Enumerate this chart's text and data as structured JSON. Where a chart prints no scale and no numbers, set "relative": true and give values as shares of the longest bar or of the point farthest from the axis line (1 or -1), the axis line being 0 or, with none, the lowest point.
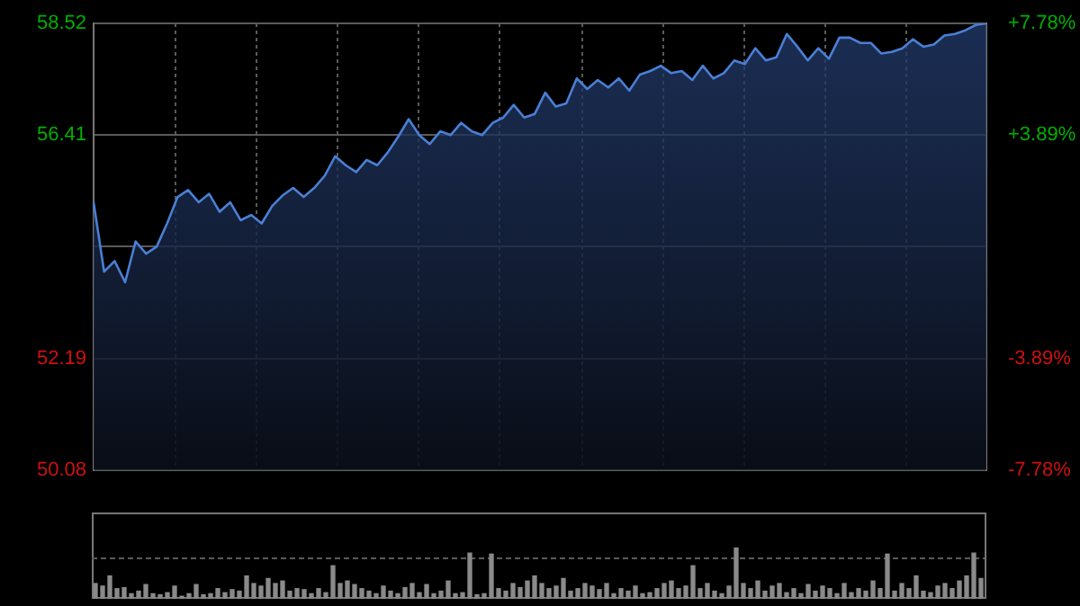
{
  "chart_data": [
    {
      "type": "area",
      "categories": [
        null,
        null,
        null,
        null,
        null,
        null,
        null,
        null,
        null,
        null,
        null,
        null,
        null,
        null,
        null,
        null,
        null,
        null,
        null,
        null,
        null,
        null,
        null,
        null,
        null,
        null,
        null,
        null,
        null,
        null,
        null,
        null,
        null,
        null,
        null,
        null,
        null,
        null,
        null,
        null,
        null,
        null,
        null,
        null,
        null,
        null,
        null,
        null,
        null,
        null,
        null,
        null,
        null,
        null,
        null,
        null,
        null,
        null,
        null,
        null,
        null,
        null,
        null,
        null,
        null,
        null,
        null,
        null,
        null,
        null,
        null,
        null,
        null,
        null,
        null,
        null,
        null,
        null,
        null,
        null,
        null,
        null,
        null,
        null,
        null,
        null
      ],
      "series": [
        {
          "color": "#4a7fd4",
          "values": [
            55.14,
            53.83,
            54.03,
            53.63,
            54.4,
            54.17,
            54.3,
            54.74,
            55.24,
            55.37,
            55.14,
            55.3,
            54.96,
            55.14,
            54.8,
            54.9,
            54.74,
            55.07,
            55.27,
            55.41,
            55.24,
            55.41,
            55.64,
            56.01,
            55.84,
            55.71,
            55.94,
            55.84,
            56.08,
            56.38,
            56.71,
            56.41,
            56.24,
            56.48,
            56.41,
            56.64,
            56.48,
            56.41,
            56.64,
            56.74,
            56.98,
            56.74,
            56.81,
            57.21,
            56.95,
            57.01,
            57.48,
            57.28,
            57.45,
            57.31,
            57.48,
            57.25,
            57.55,
            57.62,
            57.72,
            57.58,
            57.62,
            57.45,
            57.72,
            57.48,
            57.58,
            57.82,
            57.75,
            58.05,
            57.82,
            57.88,
            58.32,
            58.08,
            57.82,
            58.05,
            57.85,
            58.25,
            58.25,
            58.15,
            58.15,
            57.95,
            57.98,
            58.05,
            58.22,
            58.08,
            58.12,
            58.29,
            58.32,
            58.39,
            58.49,
            58.52
          ]
        }
      ],
      "ylim": [
        50.08,
        58.52
      ],
      "yticks": [
        "58.52",
        {
          "value": 56.41,
          "label": "56.41"
        },
        {
          "value": 54.3,
          "label": null
        },
        {
          "value": 52.19,
          "label": "52.19"
        },
        {
          "value": 50.08,
          "label": "50.08"
        }
      ],
      "y2lim": [
        -7.78,
        7.78
      ],
      "y2ticks": [
        {
          "value": 7.78,
          "label": "+7.78%"
        },
        {
          "value": 3.89,
          "label": "+3.89%"
        },
        {
          "value": 0,
          "label": null
        },
        {
          "value": -3.89,
          "label": "-3.89%"
        },
        {
          "value": -7.78,
          "label": "-7.78%"
        }
      ],
      "grid": true,
      "legend": false,
      "marker": "none",
      "line_style": "solid",
      "tick_labels": "y"
    },
    {
      "type": "bar",
      "relative": true,
      "categories": [
        null,
        null,
        null,
        null,
        null,
        null,
        null,
        null,
        null,
        null,
        null,
        null,
        null,
        null,
        null,
        null,
        null,
        null,
        null,
        null,
        null,
        null,
        null,
        null,
        null,
        null,
        null,
        null,
        null,
        null,
        null,
        null,
        null,
        null,
        null,
        null,
        null,
        null,
        null,
        null,
        null,
        null,
        null,
        null,
        null,
        null,
        null,
        null,
        null,
        null,
        null,
        null,
        null,
        null,
        null,
        null,
        null,
        null,
        null,
        null,
        null,
        null,
        null,
        null,
        null,
        null,
        null,
        null,
        null,
        null,
        null,
        null,
        null,
        null,
        null,
        null,
        null,
        null,
        null,
        null,
        null,
        null,
        null,
        null,
        null,
        null,
        null,
        null,
        null,
        null,
        null,
        null,
        null,
        null,
        null,
        null,
        null,
        null,
        null,
        null,
        null,
        null,
        null,
        null,
        null,
        null,
        null,
        null,
        null,
        null,
        null,
        null,
        null,
        null,
        null,
        null,
        null,
        null,
        null,
        null,
        null,
        null,
        null,
        null
      ],
      "series": [
        {
          "color": "#8a8a8a",
          "values": [
            0.3,
            0.25,
            0.45,
            0.2,
            0.22,
            0.1,
            0.15,
            0.28,
            0.1,
            0.08,
            0.12,
            0.25,
            0.05,
            0.1,
            0.28,
            0.08,
            0.1,
            0.2,
            0.12,
            0.18,
            0.15,
            0.45,
            0.3,
            0.25,
            0.4,
            0.3,
            0.35,
            0.15,
            0.2,
            0.18,
            0.1,
            0.2,
            0.12,
            0.65,
            0.3,
            0.35,
            0.28,
            0.2,
            0.15,
            0.1,
            0.25,
            0.15,
            0.1,
            0.22,
            0.3,
            0.12,
            0.28,
            0.1,
            0.15,
            0.35,
            0.1,
            0.12,
            0.9,
            0.08,
            0.1,
            0.88,
            0.2,
            0.15,
            0.3,
            0.22,
            0.35,
            0.45,
            0.3,
            0.2,
            0.25,
            0.4,
            0.15,
            0.2,
            0.3,
            0.25,
            0.18,
            0.3,
            0.1,
            0.2,
            0.15,
            0.25,
            0.1,
            0.12,
            0.2,
            0.3,
            0.35,
            0.2,
            0.25,
            0.65,
            0.2,
            0.3,
            0.15,
            0.1,
            0.25,
            1.0,
            0.3,
            0.2,
            0.35,
            0.15,
            0.25,
            0.3,
            0.12,
            0.2,
            0.1,
            0.28,
            0.15,
            0.25,
            0.2,
            0.1,
            0.3,
            0.12,
            0.2,
            0.15,
            0.35,
            0.2,
            0.88,
            0.15,
            0.3,
            0.2,
            0.45,
            0.15,
            0.12,
            0.25,
            0.3,
            0.2,
            0.35,
            0.45,
            0.9,
            0.4
          ]
        }
      ],
      "ref_lines": [
        {
          "axis": "y",
          "value": 0.8,
          "color": "#5a5a5a",
          "line_style": "dashed"
        }
      ],
      "legend": false
    }
  ]
}
